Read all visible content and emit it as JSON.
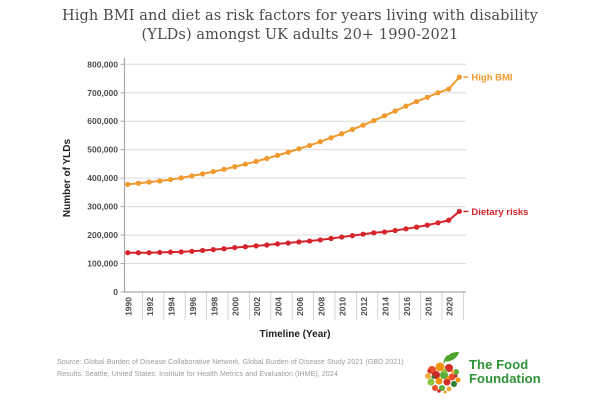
{
  "title": {
    "line1": "High BMI and diet as risk factors for years living with disability",
    "line2": "(YLDs) amongst UK adults 20+ 1990-2021"
  },
  "chart_data": {
    "type": "line",
    "x": [
      1990,
      1991,
      1992,
      1993,
      1994,
      1995,
      1996,
      1997,
      1998,
      1999,
      2000,
      2001,
      2002,
      2003,
      2004,
      2005,
      2006,
      2007,
      2008,
      2009,
      2010,
      2011,
      2012,
      2013,
      2014,
      2015,
      2016,
      2017,
      2018,
      2019,
      2020,
      2021
    ],
    "series": [
      {
        "name": "High BMI",
        "color": "#F0992D",
        "values": [
          378000,
          382000,
          386000,
          390000,
          395000,
          401000,
          408000,
          415000,
          423000,
          431000,
          440000,
          449000,
          459000,
          469000,
          480000,
          491000,
          503000,
          515000,
          528000,
          542000,
          556000,
          571000,
          586000,
          602000,
          619000,
          636000,
          653000,
          669000,
          684000,
          700000,
          713000,
          755000
        ]
      },
      {
        "name": "Dietary risks",
        "color": "#D5232B",
        "values": [
          138000,
          138000,
          138000,
          139000,
          140000,
          141000,
          143000,
          146000,
          149000,
          152000,
          156000,
          159000,
          162000,
          165000,
          169000,
          172000,
          176000,
          179000,
          183000,
          188000,
          193000,
          198000,
          203000,
          208000,
          211000,
          216000,
          222000,
          228000,
          235000,
          243000,
          252000,
          283000
        ]
      }
    ],
    "xlabel": "Timeline (Year)",
    "ylabel": "Number of YLDs",
    "ylim": [
      0,
      800000
    ],
    "ytick_step": 100000,
    "xtick_every": 2,
    "grid": true,
    "legend": "labels at line ends"
  },
  "footer": {
    "source_line1": "Source: Global Burden of Disease Collaborative Network. Global Burden of Disease Study 2021 (GBD 2021)",
    "source_line2": "Results. Seattle, United States: Institute for Health Metrics and Evaluation (IHME), 2024"
  },
  "logo": {
    "line1": "The Food",
    "line2": "Foundation",
    "text_color": "#2E9134"
  },
  "colors": {
    "gridline": "#DCDCDC",
    "axis": "#A9A9A9",
    "boundary_tick": "#C9C9C9",
    "tick_text": "#4D4D4D",
    "axis_title_text": "#1F1F1F"
  }
}
